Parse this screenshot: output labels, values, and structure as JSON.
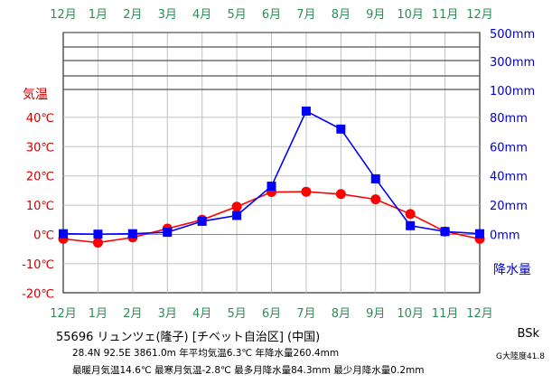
{
  "chart_data": {
    "type": "line",
    "categories": [
      "12月",
      "1月",
      "2月",
      "3月",
      "4月",
      "5月",
      "6月",
      "7月",
      "8月",
      "9月",
      "10月",
      "11月",
      "12月"
    ],
    "series": [
      {
        "name": "気温",
        "unit": "℃",
        "color": "#ff0000",
        "values": [
          -1.5,
          -2.8,
          -1.0,
          2.0,
          5.0,
          9.5,
          14.5,
          14.6,
          13.8,
          12.0,
          7.0,
          1.0,
          -1.5
        ]
      },
      {
        "name": "降水量",
        "unit": "mm",
        "color": "#0000ff",
        "values": [
          0.5,
          0.2,
          0.5,
          1.5,
          9.0,
          13.0,
          33.0,
          84.3,
          72.0,
          38.0,
          6.0,
          2.0,
          0.5
        ]
      }
    ],
    "ylabel_left": "気温",
    "ylabel_right": "降水量",
    "ylim_left": [
      -20,
      40
    ],
    "left_ticks": [
      "-20℃",
      "-10℃",
      "0℃",
      "10℃",
      "20℃",
      "30℃",
      "40℃"
    ],
    "right_ticks": [
      "0mm",
      "20mm",
      "40mm",
      "60mm",
      "80mm",
      "100mm",
      "300mm",
      "500mm"
    ],
    "grid": true
  },
  "colors": {
    "month_label": "#2e8b57",
    "temp_axis": "#cc0000",
    "precip_axis": "#0000cc",
    "temp_line": "#ff0000",
    "precip_line": "#0000ff"
  },
  "info": {
    "station": "55696 リュンツェ(隆子) [チベット自治区] (中国)",
    "stats1": "28.4N  92.5E  3861.0m  年平均気温6.3℃  年降水量260.4mm",
    "stats2": "最暖月気温14.6℃  最寒月気温-2.8℃  最多月降水量84.3mm  最少月降水量0.2mm",
    "koppen": "BSk",
    "continentality": "G大陸度41.8"
  }
}
